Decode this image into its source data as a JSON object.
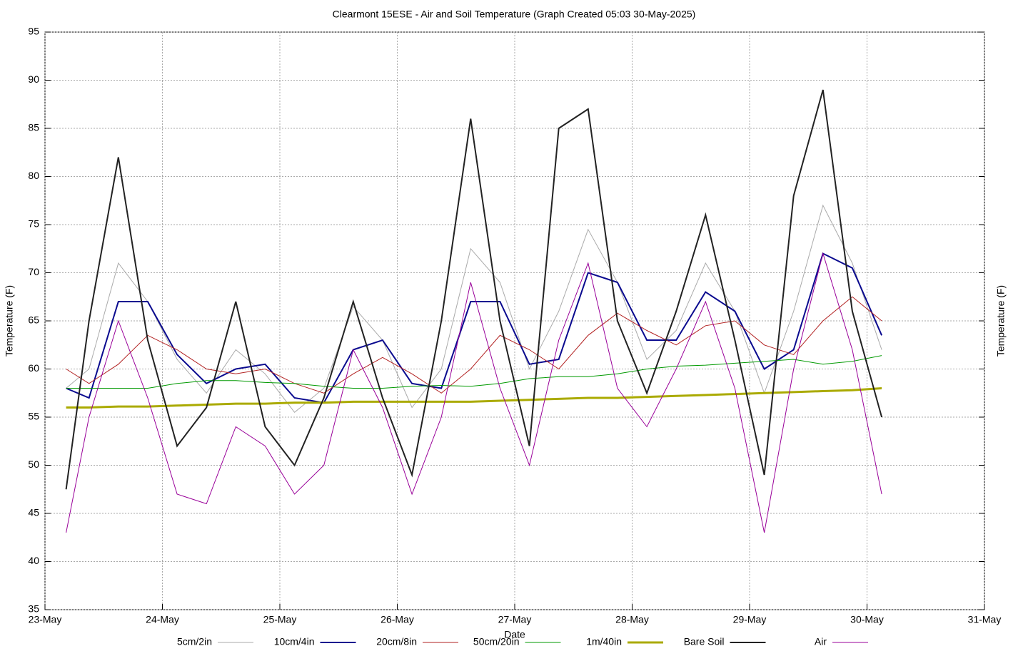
{
  "chart_data": {
    "type": "line",
    "title": "Clearmont 15ESE - Air and Soil Temperature (Graph Created 05:03 30-May-2025)",
    "x_label": "Date",
    "y_label": "Temperature (F)",
    "y2_label": "Temperature (F)",
    "grid": true,
    "legend": "bottom",
    "xlim": [
      0,
      8
    ],
    "xticks": [
      {
        "value": 0,
        "label": "23-May"
      },
      {
        "value": 1,
        "label": "24-May"
      },
      {
        "value": 2,
        "label": "25-May"
      },
      {
        "value": 3,
        "label": "26-May"
      },
      {
        "value": 4,
        "label": "27-May"
      },
      {
        "value": 5,
        "label": "28-May"
      },
      {
        "value": 6,
        "label": "29-May"
      },
      {
        "value": 7,
        "label": "30-May"
      },
      {
        "value": 8,
        "label": "31-May"
      }
    ],
    "ylim": [
      35,
      95
    ],
    "yticks": [
      35,
      40,
      45,
      50,
      55,
      60,
      65,
      70,
      75,
      80,
      85,
      90,
      95
    ],
    "x": [
      0.18,
      0.375,
      0.625,
      0.875,
      1.125,
      1.375,
      1.625,
      1.875,
      2.125,
      2.375,
      2.625,
      2.875,
      3.125,
      3.375,
      3.625,
      3.875,
      4.125,
      4.375,
      4.625,
      4.875,
      5.125,
      5.375,
      5.625,
      5.875,
      6.125,
      6.375,
      6.625,
      6.875,
      7.125
    ],
    "series": [
      {
        "name": "5cm/2in",
        "color": "#aaaaaa",
        "values": [
          58,
          60,
          71,
          67,
          61,
          57.5,
          62,
          59.5,
          55.5,
          58,
          66.5,
          63,
          56,
          60,
          72.5,
          69,
          60,
          66,
          74.5,
          69,
          61,
          64,
          71,
          66,
          57.5,
          66,
          77,
          71,
          62
        ]
      },
      {
        "name": "10cm/4in",
        "color": "#0a0a8f",
        "values": [
          58,
          57,
          67,
          67,
          61.5,
          58.5,
          60,
          60.5,
          57,
          56.5,
          62,
          63,
          58.5,
          58,
          67,
          67,
          60.5,
          61,
          70,
          69,
          63,
          63,
          68,
          66,
          60,
          62,
          72,
          70.5,
          63.5
        ]
      },
      {
        "name": "20cm/8in",
        "color": "#b22222",
        "values": [
          60,
          58.5,
          60.5,
          63.5,
          62,
          60,
          59.5,
          60,
          58.5,
          57.5,
          59.5,
          61.2,
          59.5,
          57.5,
          60,
          63.5,
          62,
          60,
          63.5,
          65.8,
          64,
          62.5,
          64.5,
          65,
          62.5,
          61.5,
          65,
          67.5,
          65
        ]
      },
      {
        "name": "50cm/20in",
        "color": "#009900",
        "values": [
          58,
          58,
          58,
          58,
          58.5,
          58.8,
          58.8,
          58.6,
          58.5,
          58.2,
          58,
          58,
          58.2,
          58.3,
          58.2,
          58.5,
          59,
          59.2,
          59.2,
          59.5,
          60,
          60.3,
          60.4,
          60.6,
          60.8,
          61,
          60.5,
          60.8,
          61.4
        ]
      },
      {
        "name": "1m/40in",
        "color": "#aaaa00",
        "values": [
          56,
          56,
          56.1,
          56.1,
          56.2,
          56.3,
          56.4,
          56.4,
          56.5,
          56.5,
          56.6,
          56.6,
          56.6,
          56.6,
          56.6,
          56.7,
          56.8,
          56.9,
          57,
          57,
          57.1,
          57.2,
          57.3,
          57.4,
          57.5,
          57.6,
          57.7,
          57.8,
          58
        ]
      },
      {
        "name": "Bare Soil",
        "color": "#222222",
        "values": [
          47.5,
          65,
          82,
          63,
          52,
          56,
          67,
          54,
          50,
          57,
          67,
          57,
          49,
          65,
          86,
          65,
          52,
          85,
          87,
          65,
          57.5,
          66,
          76,
          63,
          49,
          78,
          89,
          66,
          55
        ]
      },
      {
        "name": "Air",
        "color": "#990099",
        "values": [
          43,
          55,
          65,
          57,
          47,
          46,
          54,
          52,
          47,
          50,
          62,
          56,
          47,
          55,
          69,
          58,
          50,
          63,
          71,
          58,
          54,
          60,
          67,
          58,
          43,
          60,
          72,
          62,
          47
        ]
      }
    ]
  }
}
